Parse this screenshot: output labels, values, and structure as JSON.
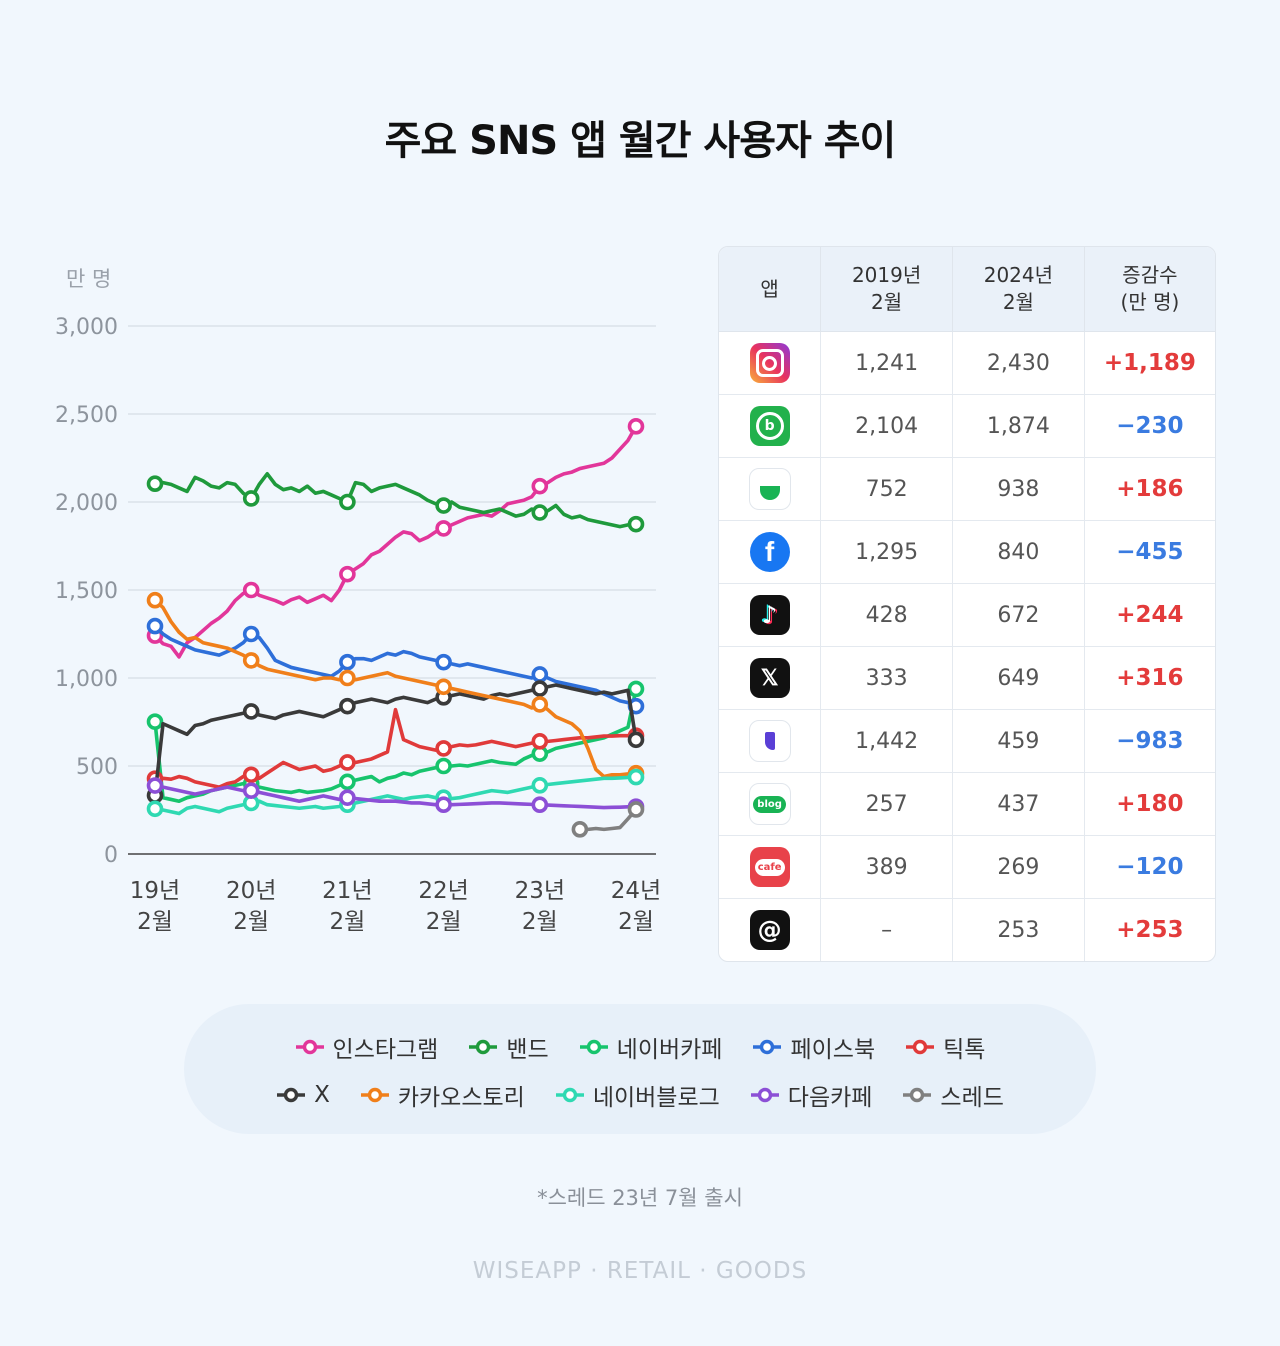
{
  "title": "주요 SNS 앱 월간 사용자 추이",
  "footnote": "*스레드 23년 7월 출시",
  "brand": "WISEAPP · RETAIL · GOODS",
  "chart_data": {
    "type": "line",
    "unit": "만 명",
    "ylim": [
      0,
      3000
    ],
    "yticks": [
      "0",
      "500",
      "1,000",
      "1,500",
      "2,000",
      "2,500",
      "3,000"
    ],
    "ytick_values": [
      0,
      500,
      1000,
      1500,
      2000,
      2500,
      3000
    ],
    "x_start": "2019-02",
    "x_end": "2024-02",
    "xtick_positions": [
      "2019-02",
      "2020-02",
      "2021-02",
      "2022-02",
      "2023-02",
      "2024-02"
    ],
    "xticks": [
      [
        "19년",
        "2월"
      ],
      [
        "20년",
        "2월"
      ],
      [
        "21년",
        "2월"
      ],
      [
        "22년",
        "2월"
      ],
      [
        "23년",
        "2월"
      ],
      [
        "24년",
        "2월"
      ]
    ],
    "grid": true,
    "series": [
      {
        "name": "인스타그램",
        "color": "#e2369a",
        "start": "2019-02",
        "markers": [
          0,
          12,
          24,
          36,
          48,
          60
        ],
        "values": [
          1241,
          1195,
          1180,
          1120,
          1200,
          1230,
          1270,
          1310,
          1340,
          1380,
          1440,
          1480,
          1500,
          1470,
          1455,
          1440,
          1420,
          1445,
          1460,
          1430,
          1450,
          1470,
          1440,
          1500,
          1590,
          1620,
          1650,
          1700,
          1720,
          1760,
          1800,
          1830,
          1820,
          1780,
          1800,
          1830,
          1850,
          1870,
          1890,
          1910,
          1920,
          1930,
          1920,
          1950,
          1990,
          2000,
          2010,
          2030,
          2090,
          2110,
          2140,
          2160,
          2170,
          2190,
          2200,
          2210,
          2220,
          2250,
          2300,
          2350,
          2430
        ]
      },
      {
        "name": "밴드",
        "color": "#1f9a3c",
        "start": "2019-02",
        "markers": [
          0,
          12,
          24,
          36,
          48,
          60
        ],
        "values": [
          2104,
          2110,
          2100,
          2080,
          2060,
          2140,
          2120,
          2090,
          2080,
          2110,
          2100,
          2050,
          2020,
          2100,
          2160,
          2100,
          2070,
          2080,
          2060,
          2090,
          2050,
          2060,
          2040,
          2020,
          2000,
          2110,
          2100,
          2060,
          2080,
          2090,
          2100,
          2080,
          2060,
          2040,
          2010,
          1990,
          1980,
          2000,
          1970,
          1960,
          1950,
          1940,
          1950,
          1960,
          1940,
          1920,
          1930,
          1960,
          1940,
          1950,
          1980,
          1930,
          1910,
          1920,
          1900,
          1890,
          1880,
          1870,
          1860,
          1870,
          1874
        ]
      },
      {
        "name": "네이버카페",
        "color": "#17c46d",
        "start": "2019-02",
        "markers": [
          0,
          12,
          24,
          36,
          48,
          60
        ],
        "values": [
          752,
          320,
          310,
          300,
          320,
          330,
          340,
          360,
          370,
          380,
          390,
          400,
          400,
          380,
          370,
          360,
          355,
          350,
          360,
          350,
          355,
          360,
          370,
          390,
          410,
          420,
          430,
          440,
          410,
          430,
          440,
          460,
          450,
          470,
          480,
          490,
          500,
          500,
          505,
          500,
          510,
          520,
          530,
          520,
          515,
          510,
          540,
          560,
          570,
          580,
          600,
          610,
          620,
          630,
          640,
          650,
          660,
          680,
          700,
          720,
          938
        ]
      },
      {
        "name": "페이스북",
        "color": "#2e6fd9",
        "start": "2019-02",
        "markers": [
          0,
          12,
          24,
          36,
          48,
          60
        ],
        "values": [
          1295,
          1250,
          1220,
          1200,
          1180,
          1160,
          1150,
          1140,
          1130,
          1150,
          1170,
          1200,
          1250,
          1230,
          1170,
          1100,
          1080,
          1060,
          1050,
          1040,
          1030,
          1020,
          1010,
          1040,
          1090,
          1110,
          1110,
          1100,
          1120,
          1140,
          1130,
          1150,
          1140,
          1120,
          1110,
          1100,
          1090,
          1080,
          1070,
          1080,
          1070,
          1060,
          1050,
          1040,
          1030,
          1020,
          1010,
          1000,
          1020,
          1000,
          980,
          970,
          960,
          950,
          940,
          930,
          910,
          890,
          870,
          860,
          840
        ]
      },
      {
        "name": "틱톡",
        "color": "#e03a3a",
        "start": "2019-02",
        "markers": [
          0,
          12,
          24,
          36,
          48,
          60
        ],
        "values": [
          428,
          430,
          425,
          440,
          430,
          410,
          400,
          390,
          380,
          400,
          410,
          440,
          450,
          430,
          460,
          490,
          520,
          500,
          480,
          490,
          500,
          470,
          480,
          500,
          520,
          520,
          530,
          540,
          560,
          580,
          820,
          650,
          630,
          610,
          600,
          590,
          600,
          610,
          620,
          615,
          620,
          630,
          640,
          630,
          620,
          610,
          620,
          630,
          640,
          640,
          645,
          650,
          655,
          660,
          660,
          665,
          670,
          670,
          672,
          672,
          672
        ]
      },
      {
        "name": "X",
        "color": "#3a3a3a",
        "start": "2019-02",
        "markers": [
          0,
          12,
          24,
          36,
          48,
          60
        ],
        "values": [
          333,
          740,
          720,
          700,
          680,
          730,
          740,
          760,
          770,
          780,
          790,
          800,
          810,
          790,
          780,
          770,
          790,
          800,
          810,
          800,
          790,
          780,
          800,
          820,
          840,
          860,
          870,
          880,
          870,
          860,
          880,
          890,
          880,
          870,
          860,
          880,
          890,
          900,
          910,
          900,
          890,
          880,
          900,
          910,
          900,
          910,
          920,
          930,
          940,
          950,
          960,
          950,
          940,
          930,
          920,
          910,
          920,
          910,
          920,
          930,
          649
        ]
      },
      {
        "name": "카카오스토리",
        "color": "#f07f1a",
        "start": "2019-02",
        "markers": [
          0,
          12,
          24,
          36,
          48,
          60
        ],
        "values": [
          1442,
          1400,
          1320,
          1260,
          1220,
          1230,
          1200,
          1190,
          1180,
          1170,
          1150,
          1130,
          1100,
          1070,
          1050,
          1040,
          1030,
          1020,
          1010,
          1000,
          990,
          1000,
          1000,
          990,
          1000,
          990,
          1000,
          1010,
          1020,
          1030,
          1010,
          1000,
          990,
          980,
          970,
          960,
          950,
          940,
          930,
          920,
          910,
          900,
          890,
          880,
          870,
          860,
          850,
          830,
          850,
          820,
          780,
          760,
          740,
          700,
          600,
          480,
          440,
          450,
          450,
          455,
          459
        ]
      },
      {
        "name": "네이버블로그",
        "color": "#2fd9b2",
        "start": "2019-02",
        "markers": [
          0,
          12,
          24,
          36,
          48,
          60
        ],
        "values": [
          257,
          250,
          240,
          230,
          260,
          270,
          260,
          250,
          240,
          260,
          270,
          280,
          290,
          300,
          280,
          275,
          270,
          265,
          260,
          265,
          270,
          260,
          265,
          270,
          280,
          290,
          300,
          310,
          320,
          330,
          320,
          310,
          320,
          325,
          330,
          320,
          320,
          315,
          320,
          330,
          340,
          350,
          360,
          355,
          350,
          360,
          370,
          380,
          390,
          395,
          400,
          405,
          410,
          415,
          420,
          425,
          430,
          430,
          432,
          435,
          437
        ]
      },
      {
        "name": "다음카페",
        "color": "#8c4fd6",
        "start": "2019-02",
        "markers": [
          0,
          12,
          24,
          36,
          48,
          60
        ],
        "values": [
          389,
          380,
          370,
          360,
          350,
          340,
          350,
          360,
          370,
          380,
          370,
          360,
          360,
          350,
          340,
          330,
          320,
          310,
          300,
          310,
          320,
          330,
          320,
          310,
          320,
          315,
          310,
          305,
          300,
          300,
          300,
          295,
          290,
          290,
          285,
          280,
          280,
          280,
          282,
          284,
          286,
          288,
          290,
          290,
          288,
          286,
          284,
          282,
          280,
          278,
          276,
          274,
          272,
          270,
          268,
          266,
          264,
          265,
          266,
          268,
          269
        ]
      },
      {
        "name": "스레드",
        "color": "#808080",
        "start": "2023-07",
        "markers": [
          0,
          7
        ],
        "values": [
          140,
          140,
          145,
          140,
          145,
          150,
          200,
          253
        ]
      }
    ]
  },
  "table": {
    "headers": [
      "앱",
      "2019년\n2월",
      "2024년\n2월",
      "증감수\n(만 명)"
    ],
    "rows": [
      {
        "app": "인스타그램",
        "icon": "instagram-icon",
        "v2019": "1,241",
        "v2024": "2,430",
        "delta": "+1,189",
        "sign": "up"
      },
      {
        "app": "밴드",
        "icon": "band-icon",
        "v2019": "2,104",
        "v2024": "1,874",
        "delta": "−230",
        "sign": "down"
      },
      {
        "app": "네이버카페",
        "icon": "naver-cafe-icon",
        "v2019": "752",
        "v2024": "938",
        "delta": "+186",
        "sign": "up"
      },
      {
        "app": "페이스북",
        "icon": "facebook-icon",
        "v2019": "1,295",
        "v2024": "840",
        "delta": "−455",
        "sign": "down"
      },
      {
        "app": "틱톡",
        "icon": "tiktok-icon",
        "v2019": "428",
        "v2024": "672",
        "delta": "+244",
        "sign": "up"
      },
      {
        "app": "X",
        "icon": "x-icon",
        "v2019": "333",
        "v2024": "649",
        "delta": "+316",
        "sign": "up"
      },
      {
        "app": "카카오스토리",
        "icon": "kakao-story-icon",
        "v2019": "1,442",
        "v2024": "459",
        "delta": "−983",
        "sign": "down"
      },
      {
        "app": "네이버블로그",
        "icon": "naver-blog-icon",
        "v2019": "257",
        "v2024": "437",
        "delta": "+180",
        "sign": "up"
      },
      {
        "app": "다음카페",
        "icon": "daum-cafe-icon",
        "v2019": "389",
        "v2024": "269",
        "delta": "−120",
        "sign": "down"
      },
      {
        "app": "스레드",
        "icon": "threads-icon",
        "v2019": "–",
        "v2024": "253",
        "delta": "+253",
        "sign": "up"
      }
    ],
    "up_color": "#e33b3b",
    "down_color": "#3a7be0"
  },
  "icon_text": {
    "blog": "blog",
    "cafe": "cafe"
  }
}
